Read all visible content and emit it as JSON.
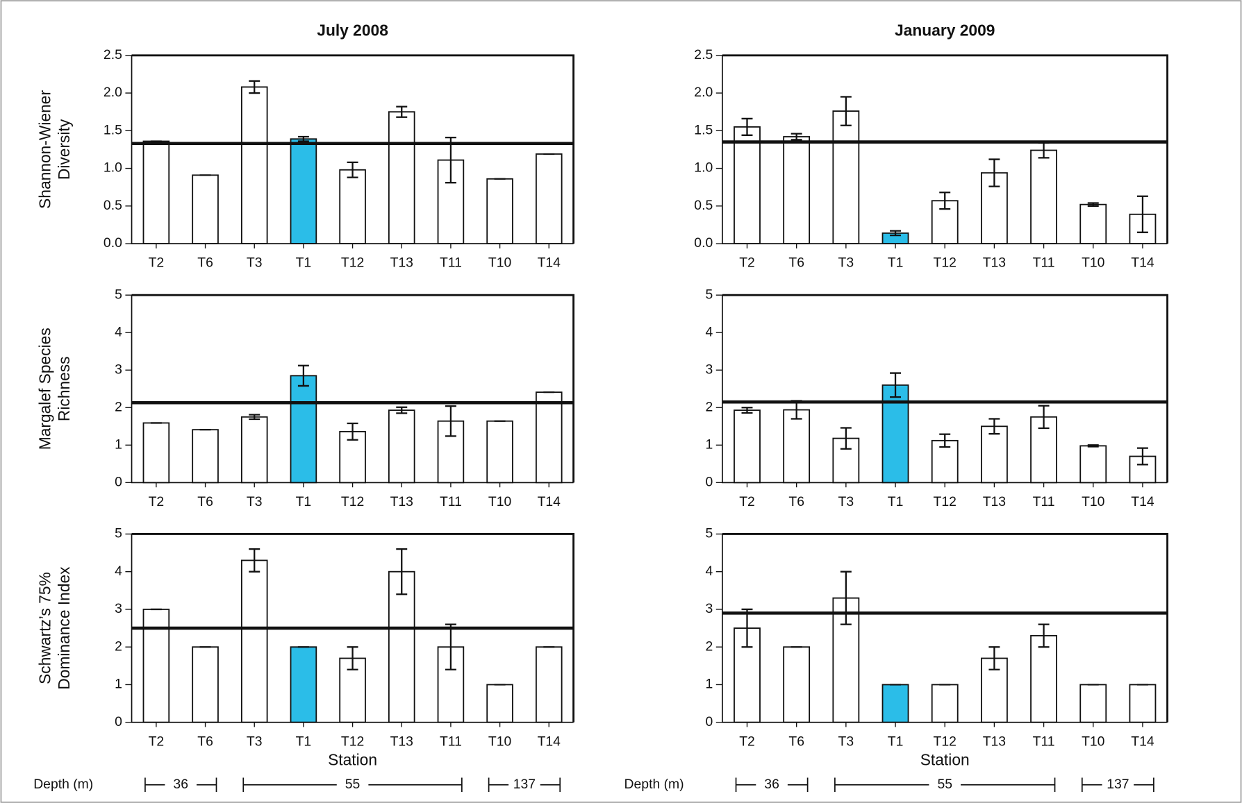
{
  "chart_data": [
    {
      "type": "bar",
      "title": "July 2008",
      "ylabel": [
        "Shannon-Wiener",
        "Diversity"
      ],
      "categories": [
        "T2",
        "T6",
        "T3",
        "T1",
        "T12",
        "T13",
        "T11",
        "T10",
        "T14"
      ],
      "values": [
        1.36,
        0.91,
        2.08,
        1.39,
        0.98,
        1.75,
        1.11,
        0.86,
        1.19
      ],
      "errors": [
        0,
        0,
        0.08,
        0.03,
        0.1,
        0.07,
        0.3,
        0,
        0
      ],
      "color": "#ffffff",
      "highlight_category": "T1",
      "highlight_color": "#2bbde8",
      "reference_line": 1.33,
      "ylim": [
        0,
        2.5
      ],
      "yticks": [
        {
          "value": 0,
          "label": "0.0"
        },
        0.5,
        {
          "value": 1,
          "label": "1.0"
        },
        1.5,
        {
          "value": 2,
          "label": "2.0"
        },
        2.5
      ]
    },
    {
      "type": "bar",
      "title": "January 2009",
      "categories": [
        "T2",
        "T6",
        "T3",
        "T1",
        "T12",
        "T13",
        "T11",
        "T10",
        "T14"
      ],
      "values": [
        1.55,
        1.42,
        1.76,
        0.14,
        0.57,
        0.94,
        1.24,
        0.52,
        0.39
      ],
      "errors": [
        0.11,
        0.04,
        0.19,
        0.03,
        0.11,
        0.18,
        0.1,
        0.02,
        0.24
      ],
      "color": "#ffffff",
      "highlight_category": "T1",
      "highlight_color": "#2bbde8",
      "reference_line": 1.35,
      "ylim": [
        0,
        2.5
      ],
      "yticks": [
        {
          "value": 0,
          "label": "0.0"
        },
        0.5,
        {
          "value": 1,
          "label": "1.0"
        },
        1.5,
        {
          "value": 2,
          "label": "2.0"
        },
        2.5
      ]
    },
    {
      "type": "bar",
      "ylabel": [
        "Margalef Species",
        "Richness"
      ],
      "categories": [
        "T2",
        "T6",
        "T3",
        "T1",
        "T12",
        "T13",
        "T11",
        "T10",
        "T14"
      ],
      "values": [
        1.59,
        1.41,
        1.75,
        2.85,
        1.36,
        1.93,
        1.64,
        1.64,
        2.41
      ],
      "errors": [
        0,
        0,
        0.06,
        0.27,
        0.22,
        0.08,
        0.4,
        0,
        0
      ],
      "color": "#ffffff",
      "highlight_category": "T1",
      "highlight_color": "#2bbde8",
      "reference_line": 2.13,
      "ylim": [
        0,
        5
      ],
      "yticks": [
        0,
        1,
        2,
        3,
        4,
        5
      ]
    },
    {
      "type": "bar",
      "categories": [
        "T2",
        "T6",
        "T3",
        "T1",
        "T12",
        "T13",
        "T11",
        "T10",
        "T14"
      ],
      "values": [
        1.93,
        1.94,
        1.18,
        2.6,
        1.12,
        1.5,
        1.75,
        0.98,
        0.7
      ],
      "errors": [
        0.07,
        0.24,
        0.28,
        0.32,
        0.17,
        0.2,
        0.3,
        0.02,
        0.22
      ],
      "color": "#ffffff",
      "highlight_category": "T1",
      "highlight_color": "#2bbde8",
      "reference_line": 2.15,
      "ylim": [
        0,
        5
      ],
      "yticks": [
        0,
        1,
        2,
        3,
        4,
        5
      ]
    },
    {
      "type": "bar",
      "ylabel": [
        "Schwartz’s 75%",
        "Dominance Index"
      ],
      "xlabel": "Station",
      "categories": [
        "T2",
        "T6",
        "T3",
        "T1",
        "T12",
        "T13",
        "T11",
        "T10",
        "T14"
      ],
      "values": [
        3.0,
        2.0,
        4.3,
        2.0,
        1.7,
        4.0,
        2.0,
        1.0,
        2.0
      ],
      "errors": [
        0,
        0,
        0.3,
        0,
        0.3,
        0.6,
        0.6,
        0,
        0
      ],
      "color": "#ffffff",
      "highlight_category": "T1",
      "highlight_color": "#2bbde8",
      "reference_line": 2.5,
      "ylim": [
        0,
        5
      ],
      "yticks": [
        0,
        1,
        2,
        3,
        4,
        5
      ],
      "depth_label": "Depth (m)",
      "depth_groups": [
        {
          "label": "36",
          "stations": [
            "T2",
            "T6"
          ]
        },
        {
          "label": "55",
          "stations": [
            "T3",
            "T11"
          ]
        },
        {
          "label": "137",
          "stations": [
            "T10",
            "T14"
          ]
        }
      ]
    },
    {
      "type": "bar",
      "xlabel": "Station",
      "categories": [
        "T2",
        "T6",
        "T3",
        "T1",
        "T12",
        "T13",
        "T11",
        "T10",
        "T14"
      ],
      "values": [
        2.5,
        2.0,
        3.3,
        1.0,
        1.0,
        1.7,
        2.3,
        1.0,
        1.0
      ],
      "errors": [
        0.5,
        0,
        0.7,
        0,
        0,
        0.3,
        0.3,
        0,
        0
      ],
      "color": "#ffffff",
      "highlight_category": "T1",
      "highlight_color": "#2bbde8",
      "reference_line": 2.9,
      "ylim": [
        0,
        5
      ],
      "yticks": [
        0,
        1,
        2,
        3,
        4,
        5
      ],
      "depth_label": "Depth (m)",
      "depth_groups": [
        {
          "label": "36",
          "stations": [
            "T2",
            "T6"
          ]
        },
        {
          "label": "55",
          "stations": [
            "T3",
            "T11"
          ]
        },
        {
          "label": "137",
          "stations": [
            "T10",
            "T14"
          ]
        }
      ]
    }
  ]
}
